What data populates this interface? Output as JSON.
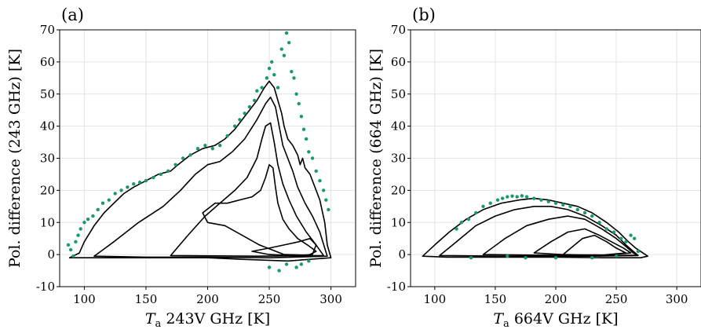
{
  "chart_data": [
    {
      "type": "scatter",
      "panel_label": "(a)",
      "xlabel_main": "T",
      "xlabel_sub": "a",
      "xlabel_rest": " 243V GHz [K]",
      "ylabel": "Pol. difference (243 GHz) [K]",
      "xlim": [
        80,
        320
      ],
      "ylim": [
        -10,
        70
      ],
      "xticks": [
        100,
        150,
        200,
        250,
        300
      ],
      "yticks": [
        -10,
        0,
        10,
        20,
        30,
        40,
        50,
        60,
        70
      ],
      "grid": true,
      "colors": {
        "points": "#1a9870",
        "contours": "#000000"
      },
      "contours": [
        [
          [
            88,
            -1
          ],
          [
            96,
            0.5
          ],
          [
            100,
            4
          ],
          [
            108,
            9
          ],
          [
            116,
            13
          ],
          [
            124,
            16
          ],
          [
            132,
            19
          ],
          [
            140,
            21
          ],
          [
            150,
            23
          ],
          [
            160,
            25
          ],
          [
            170,
            26
          ],
          [
            176,
            28
          ],
          [
            186,
            31
          ],
          [
            196,
            33
          ],
          [
            206,
            34
          ],
          [
            214,
            36
          ],
          [
            222,
            39
          ],
          [
            228,
            42
          ],
          [
            234,
            45
          ],
          [
            240,
            48
          ],
          [
            246,
            52
          ],
          [
            250,
            54
          ],
          [
            254,
            52
          ],
          [
            257,
            48
          ],
          [
            260,
            44
          ],
          [
            262,
            40
          ],
          [
            265,
            36
          ],
          [
            269,
            34
          ],
          [
            273,
            31
          ],
          [
            275,
            28
          ],
          [
            277,
            30
          ],
          [
            279,
            27
          ],
          [
            283,
            25
          ],
          [
            287,
            21
          ],
          [
            291,
            17
          ],
          [
            295,
            10
          ],
          [
            297,
            3
          ],
          [
            300,
            -1
          ],
          [
            265,
            -2
          ],
          [
            230,
            -1.5
          ],
          [
            200,
            -1
          ],
          [
            170,
            -1
          ],
          [
            130,
            -1
          ],
          [
            100,
            -1
          ],
          [
            88,
            -1
          ]
        ],
        [
          [
            108,
            -0.5
          ],
          [
            124,
            4
          ],
          [
            144,
            10
          ],
          [
            164,
            15
          ],
          [
            178,
            20
          ],
          [
            190,
            25
          ],
          [
            200,
            28
          ],
          [
            210,
            29
          ],
          [
            220,
            32
          ],
          [
            230,
            36
          ],
          [
            240,
            42
          ],
          [
            247,
            47
          ],
          [
            251,
            49
          ],
          [
            255,
            46
          ],
          [
            258,
            40
          ],
          [
            261,
            34
          ],
          [
            265,
            30
          ],
          [
            269,
            26
          ],
          [
            273,
            21
          ],
          [
            279,
            16
          ],
          [
            285,
            12
          ],
          [
            291,
            7
          ],
          [
            295,
            2
          ],
          [
            297,
            -0.5
          ],
          [
            250,
            -1
          ],
          [
            200,
            -0.8
          ],
          [
            150,
            -0.8
          ],
          [
            108,
            -0.5
          ]
        ],
        [
          [
            170,
            -0.3
          ],
          [
            184,
            6
          ],
          [
            198,
            12
          ],
          [
            210,
            16
          ],
          [
            222,
            20
          ],
          [
            232,
            24
          ],
          [
            240,
            30
          ],
          [
            244,
            36
          ],
          [
            247,
            40
          ],
          [
            251,
            41
          ],
          [
            254,
            35
          ],
          [
            257,
            28
          ],
          [
            261,
            22
          ],
          [
            266,
            17
          ],
          [
            272,
            12
          ],
          [
            280,
            7
          ],
          [
            288,
            3
          ],
          [
            294,
            -0.3
          ],
          [
            240,
            -0.5
          ],
          [
            170,
            -0.3
          ]
        ],
        [
          [
            196,
            13
          ],
          [
            206,
            16
          ],
          [
            216,
            16
          ],
          [
            226,
            17
          ],
          [
            236,
            18
          ],
          [
            243,
            20
          ],
          [
            247,
            24
          ],
          [
            250,
            28
          ],
          [
            253,
            27
          ],
          [
            255,
            21
          ],
          [
            257,
            16
          ],
          [
            261,
            11
          ],
          [
            266,
            8
          ],
          [
            273,
            5
          ],
          [
            281,
            3
          ],
          [
            288,
            1
          ],
          [
            282,
            -0.2
          ],
          [
            262,
            0
          ],
          [
            242,
            3
          ],
          [
            228,
            6
          ],
          [
            214,
            9
          ],
          [
            200,
            10
          ],
          [
            196,
            13
          ]
        ],
        [
          [
            236,
            1
          ],
          [
            250,
            2
          ],
          [
            262,
            3
          ],
          [
            274,
            4
          ],
          [
            283,
            5
          ],
          [
            288,
            3
          ],
          [
            285,
            0
          ],
          [
            270,
            -0.3
          ],
          [
            250,
            0
          ],
          [
            236,
            1
          ]
        ]
      ],
      "points": [
        [
          87,
          3
        ],
        [
          89,
          1.5
        ],
        [
          91,
          -0.5
        ],
        [
          93,
          4
        ],
        [
          95,
          6
        ],
        [
          97,
          8
        ],
        [
          100,
          10
        ],
        [
          103,
          11
        ],
        [
          107,
          12
        ],
        [
          111,
          14
        ],
        [
          115,
          16
        ],
        [
          120,
          17
        ],
        [
          125,
          19
        ],
        [
          130,
          20
        ],
        [
          135,
          21
        ],
        [
          140,
          22
        ],
        [
          145,
          22.5
        ],
        [
          150,
          23
        ],
        [
          156,
          24
        ],
        [
          162,
          25
        ],
        [
          168,
          26
        ],
        [
          174,
          28
        ],
        [
          180,
          30
        ],
        [
          186,
          31
        ],
        [
          192,
          33
        ],
        [
          198,
          34
        ],
        [
          204,
          33
        ],
        [
          210,
          34
        ],
        [
          216,
          37
        ],
        [
          222,
          40
        ],
        [
          226,
          42
        ],
        [
          230,
          44
        ],
        [
          234,
          46
        ],
        [
          238,
          48
        ],
        [
          240,
          51
        ],
        [
          244,
          52
        ],
        [
          248,
          55
        ],
        [
          250,
          58
        ],
        [
          252,
          60
        ],
        [
          254,
          56
        ],
        [
          257,
          52
        ],
        [
          260,
          64
        ],
        [
          262,
          62
        ],
        [
          264,
          69
        ],
        [
          266,
          66
        ],
        [
          268,
          57
        ],
        [
          270,
          55
        ],
        [
          272,
          50
        ],
        [
          274,
          47
        ],
        [
          276,
          43
        ],
        [
          278,
          39
        ],
        [
          280,
          36
        ],
        [
          282,
          32
        ],
        [
          285,
          30
        ],
        [
          288,
          26
        ],
        [
          291,
          23
        ],
        [
          294,
          20
        ],
        [
          296,
          17
        ],
        [
          298,
          14
        ],
        [
          264,
          -3
        ],
        [
          272,
          -4
        ],
        [
          250,
          -4
        ],
        [
          282,
          -2
        ],
        [
          276,
          -3
        ],
        [
          258,
          -5
        ]
      ]
    },
    {
      "type": "scatter",
      "panel_label": "(b)",
      "xlabel_main": "T",
      "xlabel_sub": "a",
      "xlabel_rest": " 664V GHz [K]",
      "ylabel": "Pol. difference (664 GHz) [K]",
      "xlim": [
        80,
        320
      ],
      "ylim": [
        -10,
        70
      ],
      "xticks": [
        100,
        150,
        200,
        250,
        300
      ],
      "yticks": [
        -10,
        0,
        10,
        20,
        30,
        40,
        50,
        60,
        70
      ],
      "grid": true,
      "colors": {
        "points": "#1a9870",
        "contours": "#000000"
      },
      "contours": [
        [
          [
            90,
            -0.5
          ],
          [
            100,
            3
          ],
          [
            112,
            7
          ],
          [
            126,
            11
          ],
          [
            140,
            14
          ],
          [
            155,
            16
          ],
          [
            170,
            17
          ],
          [
            182,
            17.5
          ],
          [
            194,
            17
          ],
          [
            206,
            16
          ],
          [
            218,
            15
          ],
          [
            230,
            13
          ],
          [
            242,
            10
          ],
          [
            252,
            7
          ],
          [
            260,
            4
          ],
          [
            266,
            2
          ],
          [
            272,
            0.5
          ],
          [
            276,
            -0.5
          ],
          [
            270,
            -1
          ],
          [
            240,
            -1
          ],
          [
            200,
            -0.8
          ],
          [
            150,
            -0.8
          ],
          [
            110,
            -0.8
          ],
          [
            90,
            -0.5
          ]
        ],
        [
          [
            104,
            -0.3
          ],
          [
            118,
            4
          ],
          [
            134,
            9
          ],
          [
            150,
            12
          ],
          [
            166,
            14
          ],
          [
            182,
            15
          ],
          [
            196,
            15
          ],
          [
            210,
            14
          ],
          [
            224,
            12
          ],
          [
            238,
            9
          ],
          [
            250,
            6
          ],
          [
            258,
            3
          ],
          [
            264,
            1
          ],
          [
            268,
            -0.3
          ],
          [
            230,
            -0.5
          ],
          [
            170,
            -0.5
          ],
          [
            104,
            -0.3
          ]
        ],
        [
          [
            140,
            0
          ],
          [
            158,
            5
          ],
          [
            176,
            9
          ],
          [
            194,
            11
          ],
          [
            210,
            12
          ],
          [
            224,
            11
          ],
          [
            238,
            8
          ],
          [
            250,
            5
          ],
          [
            258,
            2.5
          ],
          [
            264,
            0.5
          ],
          [
            268,
            -0.2
          ],
          [
            240,
            -0.3
          ],
          [
            190,
            -0.2
          ],
          [
            140,
            0
          ]
        ],
        [
          [
            182,
            0.5
          ],
          [
            196,
            4
          ],
          [
            210,
            7
          ],
          [
            224,
            8
          ],
          [
            236,
            6
          ],
          [
            246,
            4
          ],
          [
            256,
            2
          ],
          [
            262,
            0.5
          ],
          [
            240,
            -0.2
          ],
          [
            210,
            -0.1
          ],
          [
            182,
            0.5
          ]
        ],
        [
          [
            206,
            0
          ],
          [
            214,
            2.5
          ],
          [
            222,
            5
          ],
          [
            232,
            6
          ],
          [
            242,
            4
          ],
          [
            250,
            2
          ],
          [
            258,
            0.5
          ],
          [
            240,
            -0.1
          ],
          [
            220,
            -0.1
          ],
          [
            206,
            0
          ]
        ]
      ],
      "points": [
        [
          118,
          8
        ],
        [
          122,
          10
        ],
        [
          128,
          11
        ],
        [
          134,
          13
        ],
        [
          140,
          15
        ],
        [
          146,
          16
        ],
        [
          152,
          17
        ],
        [
          156,
          17.5
        ],
        [
          160,
          18
        ],
        [
          164,
          18.2
        ],
        [
          168,
          18
        ],
        [
          172,
          18.3
        ],
        [
          176,
          18
        ],
        [
          182,
          17.5
        ],
        [
          188,
          17
        ],
        [
          194,
          16.5
        ],
        [
          200,
          16
        ],
        [
          206,
          15.5
        ],
        [
          212,
          15
        ],
        [
          218,
          14
        ],
        [
          224,
          13
        ],
        [
          230,
          12
        ],
        [
          236,
          10
        ],
        [
          242,
          8
        ],
        [
          248,
          7
        ],
        [
          254,
          5
        ],
        [
          258,
          4
        ],
        [
          262,
          6
        ],
        [
          265,
          5
        ],
        [
          268,
          1
        ],
        [
          130,
          -1
        ],
        [
          160,
          -0.5
        ],
        [
          175,
          -1
        ],
        [
          200,
          -1
        ],
        [
          230,
          -1
        ],
        [
          250,
          -0.5
        ]
      ]
    }
  ]
}
